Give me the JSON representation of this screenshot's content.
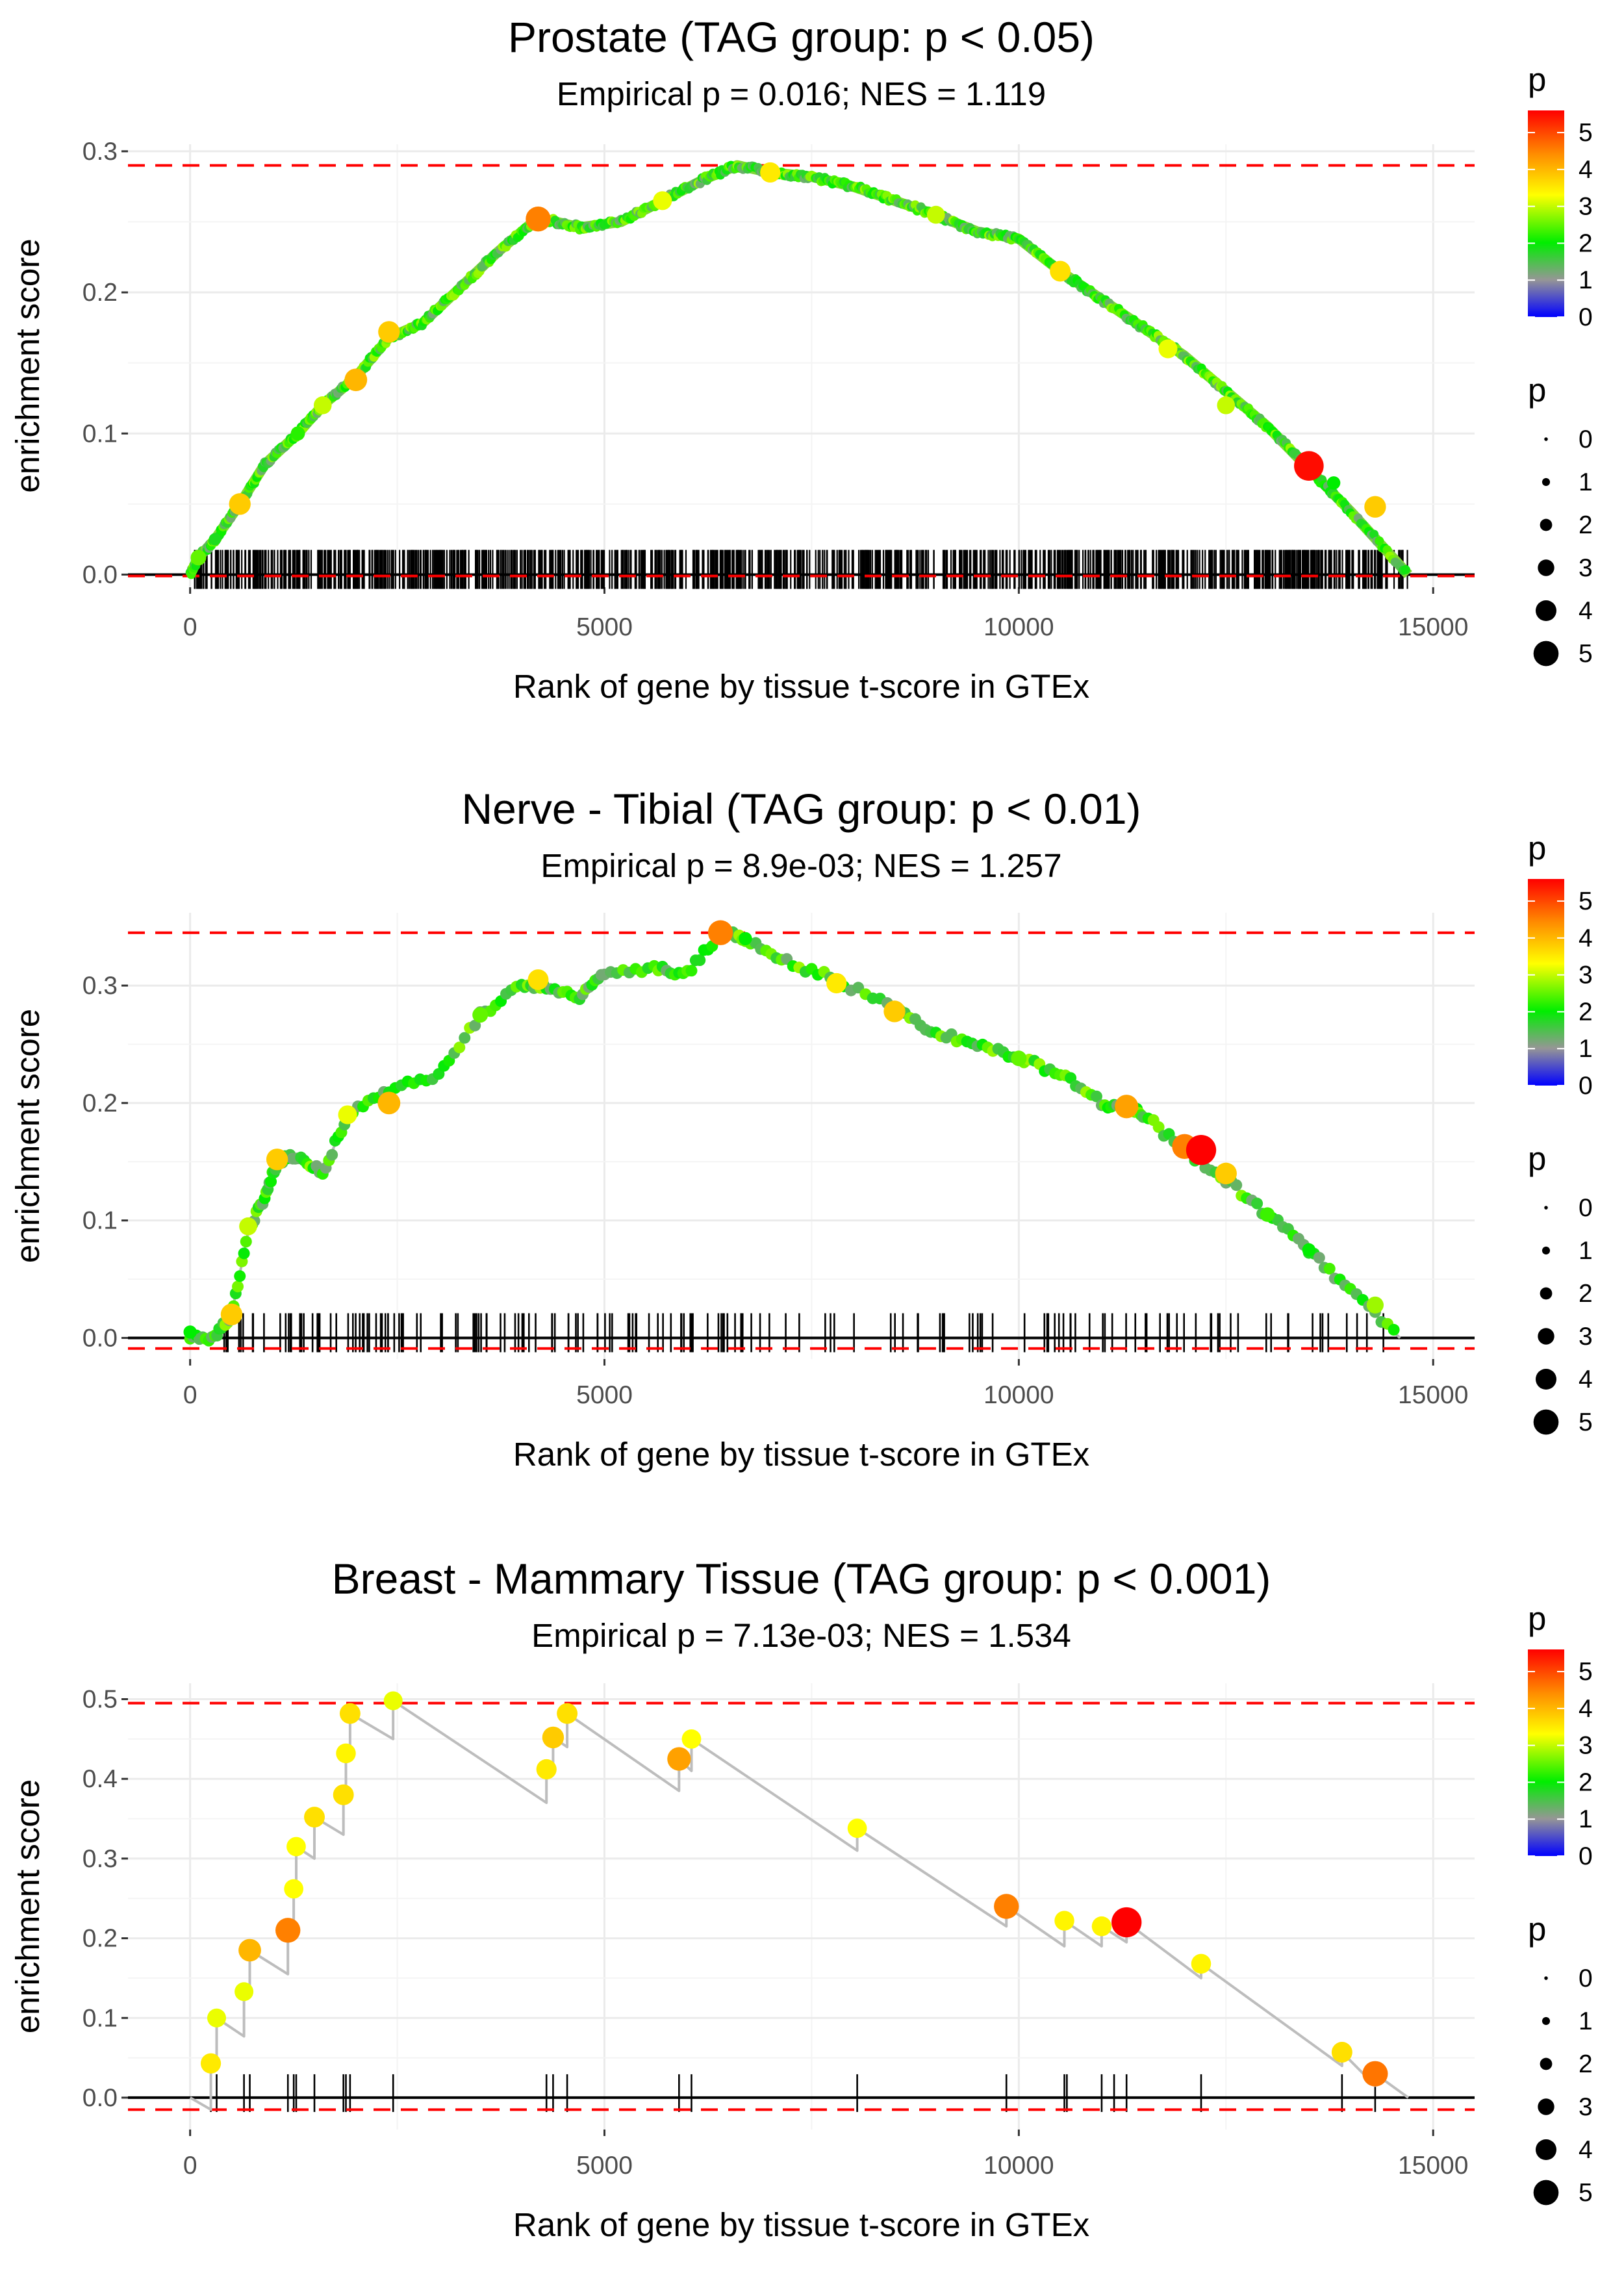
{
  "chart_data": [
    {
      "type": "line",
      "title": "Prostate (TAG group: p < 0.05)",
      "subtitle": "Empirical p = 0.016; NES = 1.119",
      "xlabel": "Rank of gene by tissue t-score in GTEx",
      "ylabel": "enrichment score",
      "xlim": [
        -750,
        15500
      ],
      "ylim": [
        -0.009,
        0.305
      ],
      "x_ticks": [
        0,
        5000,
        10000,
        15000
      ],
      "x_tick_labels": [
        "0",
        "5000",
        "10000",
        "15000"
      ],
      "y_ticks": [
        0.0,
        0.1,
        0.2,
        0.3
      ],
      "y_tick_labels": [
        "0.0",
        "0.1",
        "0.2",
        "0.3"
      ],
      "grid": true,
      "ref_lines": [
        0.29,
        -0.001
      ],
      "curve": [
        [
          0,
          0.0
        ],
        [
          100,
          0.012
        ],
        [
          300,
          0.025
        ],
        [
          600,
          0.05
        ],
        [
          900,
          0.078
        ],
        [
          1300,
          0.1
        ],
        [
          1600,
          0.12
        ],
        [
          2000,
          0.14
        ],
        [
          2400,
          0.168
        ],
        [
          2800,
          0.178
        ],
        [
          3200,
          0.2
        ],
        [
          3700,
          0.228
        ],
        [
          4200,
          0.253
        ],
        [
          4700,
          0.246
        ],
        [
          5200,
          0.25
        ],
        [
          5700,
          0.265
        ],
        [
          6200,
          0.28
        ],
        [
          6600,
          0.29
        ],
        [
          7000,
          0.285
        ],
        [
          7500,
          0.282
        ],
        [
          8000,
          0.275
        ],
        [
          8500,
          0.265
        ],
        [
          9000,
          0.255
        ],
        [
          9500,
          0.243
        ],
        [
          10000,
          0.238
        ],
        [
          10500,
          0.215
        ],
        [
          11000,
          0.195
        ],
        [
          11500,
          0.175
        ],
        [
          12000,
          0.155
        ],
        [
          12500,
          0.13
        ],
        [
          13000,
          0.105
        ],
        [
          13500,
          0.075
        ],
        [
          14000,
          0.045
        ],
        [
          14700,
          0.0
        ]
      ],
      "points": [
        [
          100,
          0.012,
          2.5
        ],
        [
          300,
          0.025,
          1.8
        ],
        [
          600,
          0.05,
          3.8
        ],
        [
          1300,
          0.1,
          2.2
        ],
        [
          1600,
          0.12,
          3.0
        ],
        [
          2000,
          0.138,
          4.0
        ],
        [
          2400,
          0.172,
          3.8
        ],
        [
          4200,
          0.252,
          4.5
        ],
        [
          5700,
          0.265,
          3.2
        ],
        [
          7000,
          0.285,
          3.5
        ],
        [
          9000,
          0.255,
          3.0
        ],
        [
          10500,
          0.215,
          3.6
        ],
        [
          11800,
          0.16,
          3.2
        ],
        [
          12500,
          0.12,
          3.0
        ],
        [
          13500,
          0.077,
          5.5
        ],
        [
          13800,
          0.065,
          2.0
        ],
        [
          14300,
          0.048,
          3.8
        ]
      ],
      "rug_n": 1000,
      "legend": {
        "color_title": "p",
        "color_ticks": [
          "5",
          "4",
          "3",
          "2",
          "1",
          "0"
        ],
        "size_title": "p",
        "size_labels": [
          "0",
          "1",
          "2",
          "3",
          "4",
          "5"
        ]
      }
    },
    {
      "type": "line",
      "title": "Nerve - Tibial (TAG group: p < 0.01)",
      "subtitle": "Empirical p = 8.9e-03; NES = 1.257",
      "xlabel": "Rank of gene by tissue t-score in GTEx",
      "ylabel": "enrichment score",
      "xlim": [
        -750,
        15500
      ],
      "ylim": [
        -0.018,
        0.362
      ],
      "x_ticks": [
        0,
        5000,
        10000,
        15000
      ],
      "x_tick_labels": [
        "0",
        "5000",
        "10000",
        "15000"
      ],
      "y_ticks": [
        0.0,
        0.1,
        0.2,
        0.3
      ],
      "y_tick_labels": [
        "0.0",
        "0.1",
        "0.2",
        "0.3"
      ],
      "grid": true,
      "ref_lines": [
        0.345,
        -0.009
      ],
      "curve": [
        [
          0,
          0.0
        ],
        [
          300,
          0.0
        ],
        [
          500,
          0.02
        ],
        [
          700,
          0.09
        ],
        [
          900,
          0.12
        ],
        [
          1050,
          0.15
        ],
        [
          1300,
          0.155
        ],
        [
          1600,
          0.14
        ],
        [
          1900,
          0.19
        ],
        [
          2400,
          0.21
        ],
        [
          3000,
          0.225
        ],
        [
          3500,
          0.275
        ],
        [
          4000,
          0.3
        ],
        [
          4300,
          0.3
        ],
        [
          4700,
          0.29
        ],
        [
          5000,
          0.31
        ],
        [
          5600,
          0.315
        ],
        [
          6000,
          0.31
        ],
        [
          6400,
          0.345
        ],
        [
          6700,
          0.34
        ],
        [
          7200,
          0.32
        ],
        [
          7800,
          0.305
        ],
        [
          8500,
          0.28
        ],
        [
          9000,
          0.26
        ],
        [
          9500,
          0.25
        ],
        [
          10000,
          0.238
        ],
        [
          10500,
          0.225
        ],
        [
          11000,
          0.2
        ],
        [
          11300,
          0.196
        ],
        [
          11500,
          0.19
        ],
        [
          12000,
          0.16
        ],
        [
          12500,
          0.135
        ],
        [
          13000,
          0.105
        ],
        [
          13500,
          0.075
        ],
        [
          14000,
          0.04
        ],
        [
          14600,
          0.0
        ]
      ],
      "points": [
        [
          0,
          0.005,
          2.0
        ],
        [
          500,
          0.02,
          3.8
        ],
        [
          700,
          0.095,
          3.0
        ],
        [
          1050,
          0.152,
          3.8
        ],
        [
          1900,
          0.19,
          3.2
        ],
        [
          2400,
          0.2,
          4.0
        ],
        [
          3500,
          0.275,
          2.5
        ],
        [
          4200,
          0.305,
          3.6
        ],
        [
          6400,
          0.345,
          4.5
        ],
        [
          6700,
          0.34,
          2.0
        ],
        [
          7800,
          0.302,
          3.5
        ],
        [
          8500,
          0.278,
          3.8
        ],
        [
          10000,
          0.238,
          2.5
        ],
        [
          11300,
          0.197,
          4.2
        ],
        [
          12000,
          0.163,
          4.5
        ],
        [
          12200,
          0.16,
          5.6
        ],
        [
          12500,
          0.14,
          3.8
        ],
        [
          13000,
          0.105,
          2.3
        ],
        [
          13500,
          0.075,
          2.0
        ],
        [
          14300,
          0.028,
          2.8
        ]
      ],
      "rug_n": 170,
      "legend": {
        "color_title": "p",
        "color_ticks": [
          "5",
          "4",
          "3",
          "2",
          "1",
          "0"
        ],
        "size_title": "p",
        "size_labels": [
          "0",
          "1",
          "2",
          "3",
          "4",
          "5"
        ]
      }
    },
    {
      "type": "line",
      "title": "Breast - Mammary Tissue (TAG group: p < 0.001)",
      "subtitle": "Empirical p = 7.13e-03; NES = 1.534",
      "xlabel": "Rank of gene by tissue t-score in GTEx",
      "ylabel": "enrichment score",
      "xlim": [
        -750,
        15500
      ],
      "ylim": [
        -0.04,
        0.52
      ],
      "x_ticks": [
        0,
        5000,
        10000,
        15000
      ],
      "x_tick_labels": [
        "0",
        "5000",
        "10000",
        "15000"
      ],
      "y_ticks": [
        0.0,
        0.1,
        0.2,
        0.3,
        0.4,
        0.5
      ],
      "y_tick_labels": [
        "0.0",
        "0.1",
        "0.2",
        "0.3",
        "0.4",
        "0.5"
      ],
      "grid": true,
      "ref_lines": [
        0.495,
        -0.015
      ],
      "curve": [
        [
          0,
          0.0
        ],
        [
          250,
          -0.015
        ],
        [
          250,
          0.043
        ],
        [
          320,
          0.043
        ],
        [
          320,
          0.1
        ],
        [
          650,
          0.077
        ],
        [
          650,
          0.133
        ],
        [
          720,
          0.13
        ],
        [
          720,
          0.185
        ],
        [
          1180,
          0.155
        ],
        [
          1180,
          0.21
        ],
        [
          1250,
          0.205
        ],
        [
          1250,
          0.262
        ],
        [
          1280,
          0.26
        ],
        [
          1280,
          0.315
        ],
        [
          1500,
          0.3
        ],
        [
          1500,
          0.352
        ],
        [
          1850,
          0.33
        ],
        [
          1850,
          0.38
        ],
        [
          1880,
          0.378
        ],
        [
          1880,
          0.432
        ],
        [
          1930,
          0.43
        ],
        [
          1930,
          0.482
        ],
        [
          2450,
          0.45
        ],
        [
          2450,
          0.498
        ],
        [
          4300,
          0.37
        ],
        [
          4300,
          0.412
        ],
        [
          4380,
          0.405
        ],
        [
          4380,
          0.452
        ],
        [
          4550,
          0.44
        ],
        [
          4550,
          0.482
        ],
        [
          5900,
          0.385
        ],
        [
          5900,
          0.425
        ],
        [
          6050,
          0.41
        ],
        [
          6050,
          0.45
        ],
        [
          8050,
          0.31
        ],
        [
          8050,
          0.338
        ],
        [
          9850,
          0.215
        ],
        [
          9850,
          0.24
        ],
        [
          10550,
          0.19
        ],
        [
          10550,
          0.222
        ],
        [
          11000,
          0.19
        ],
        [
          11000,
          0.215
        ],
        [
          11300,
          0.195
        ],
        [
          11300,
          0.22
        ],
        [
          12200,
          0.15
        ],
        [
          12200,
          0.168
        ],
        [
          13900,
          0.04
        ],
        [
          13900,
          0.057
        ],
        [
          14300,
          0.015
        ],
        [
          14300,
          0.03
        ],
        [
          14700,
          0.0
        ]
      ],
      "points": [
        [
          250,
          0.043,
          3.5
        ],
        [
          320,
          0.1,
          3.2
        ],
        [
          650,
          0.133,
          3.2
        ],
        [
          720,
          0.185,
          4.0
        ],
        [
          1180,
          0.21,
          4.5
        ],
        [
          1250,
          0.262,
          3.3
        ],
        [
          1280,
          0.315,
          3.3
        ],
        [
          1500,
          0.352,
          3.6
        ],
        [
          1850,
          0.38,
          3.6
        ],
        [
          1880,
          0.432,
          3.4
        ],
        [
          1930,
          0.482,
          3.6
        ],
        [
          2450,
          0.498,
          3.2
        ],
        [
          4300,
          0.412,
          3.5
        ],
        [
          4380,
          0.452,
          3.8
        ],
        [
          4550,
          0.482,
          3.6
        ],
        [
          5900,
          0.425,
          4.2
        ],
        [
          6050,
          0.45,
          3.3
        ],
        [
          8050,
          0.338,
          3.3
        ],
        [
          9850,
          0.24,
          4.5
        ],
        [
          10550,
          0.222,
          3.4
        ],
        [
          11000,
          0.215,
          3.4
        ],
        [
          11300,
          0.22,
          5.6
        ],
        [
          12200,
          0.168,
          3.4
        ],
        [
          13900,
          0.057,
          3.6
        ],
        [
          14300,
          0.03,
          4.6
        ]
      ],
      "rug": [
        250,
        320,
        650,
        720,
        1180,
        1250,
        1280,
        1500,
        1850,
        1880,
        1930,
        2450,
        4300,
        4380,
        4550,
        5900,
        6050,
        8050,
        9850,
        10550,
        10580,
        11000,
        11150,
        11300,
        12200,
        13900,
        14300
      ],
      "legend": {
        "color_title": "p",
        "color_ticks": [
          "5",
          "4",
          "3",
          "2",
          "1",
          "0"
        ],
        "size_title": "p",
        "size_labels": [
          "0",
          "1",
          "2",
          "3",
          "4",
          "5"
        ]
      }
    }
  ]
}
